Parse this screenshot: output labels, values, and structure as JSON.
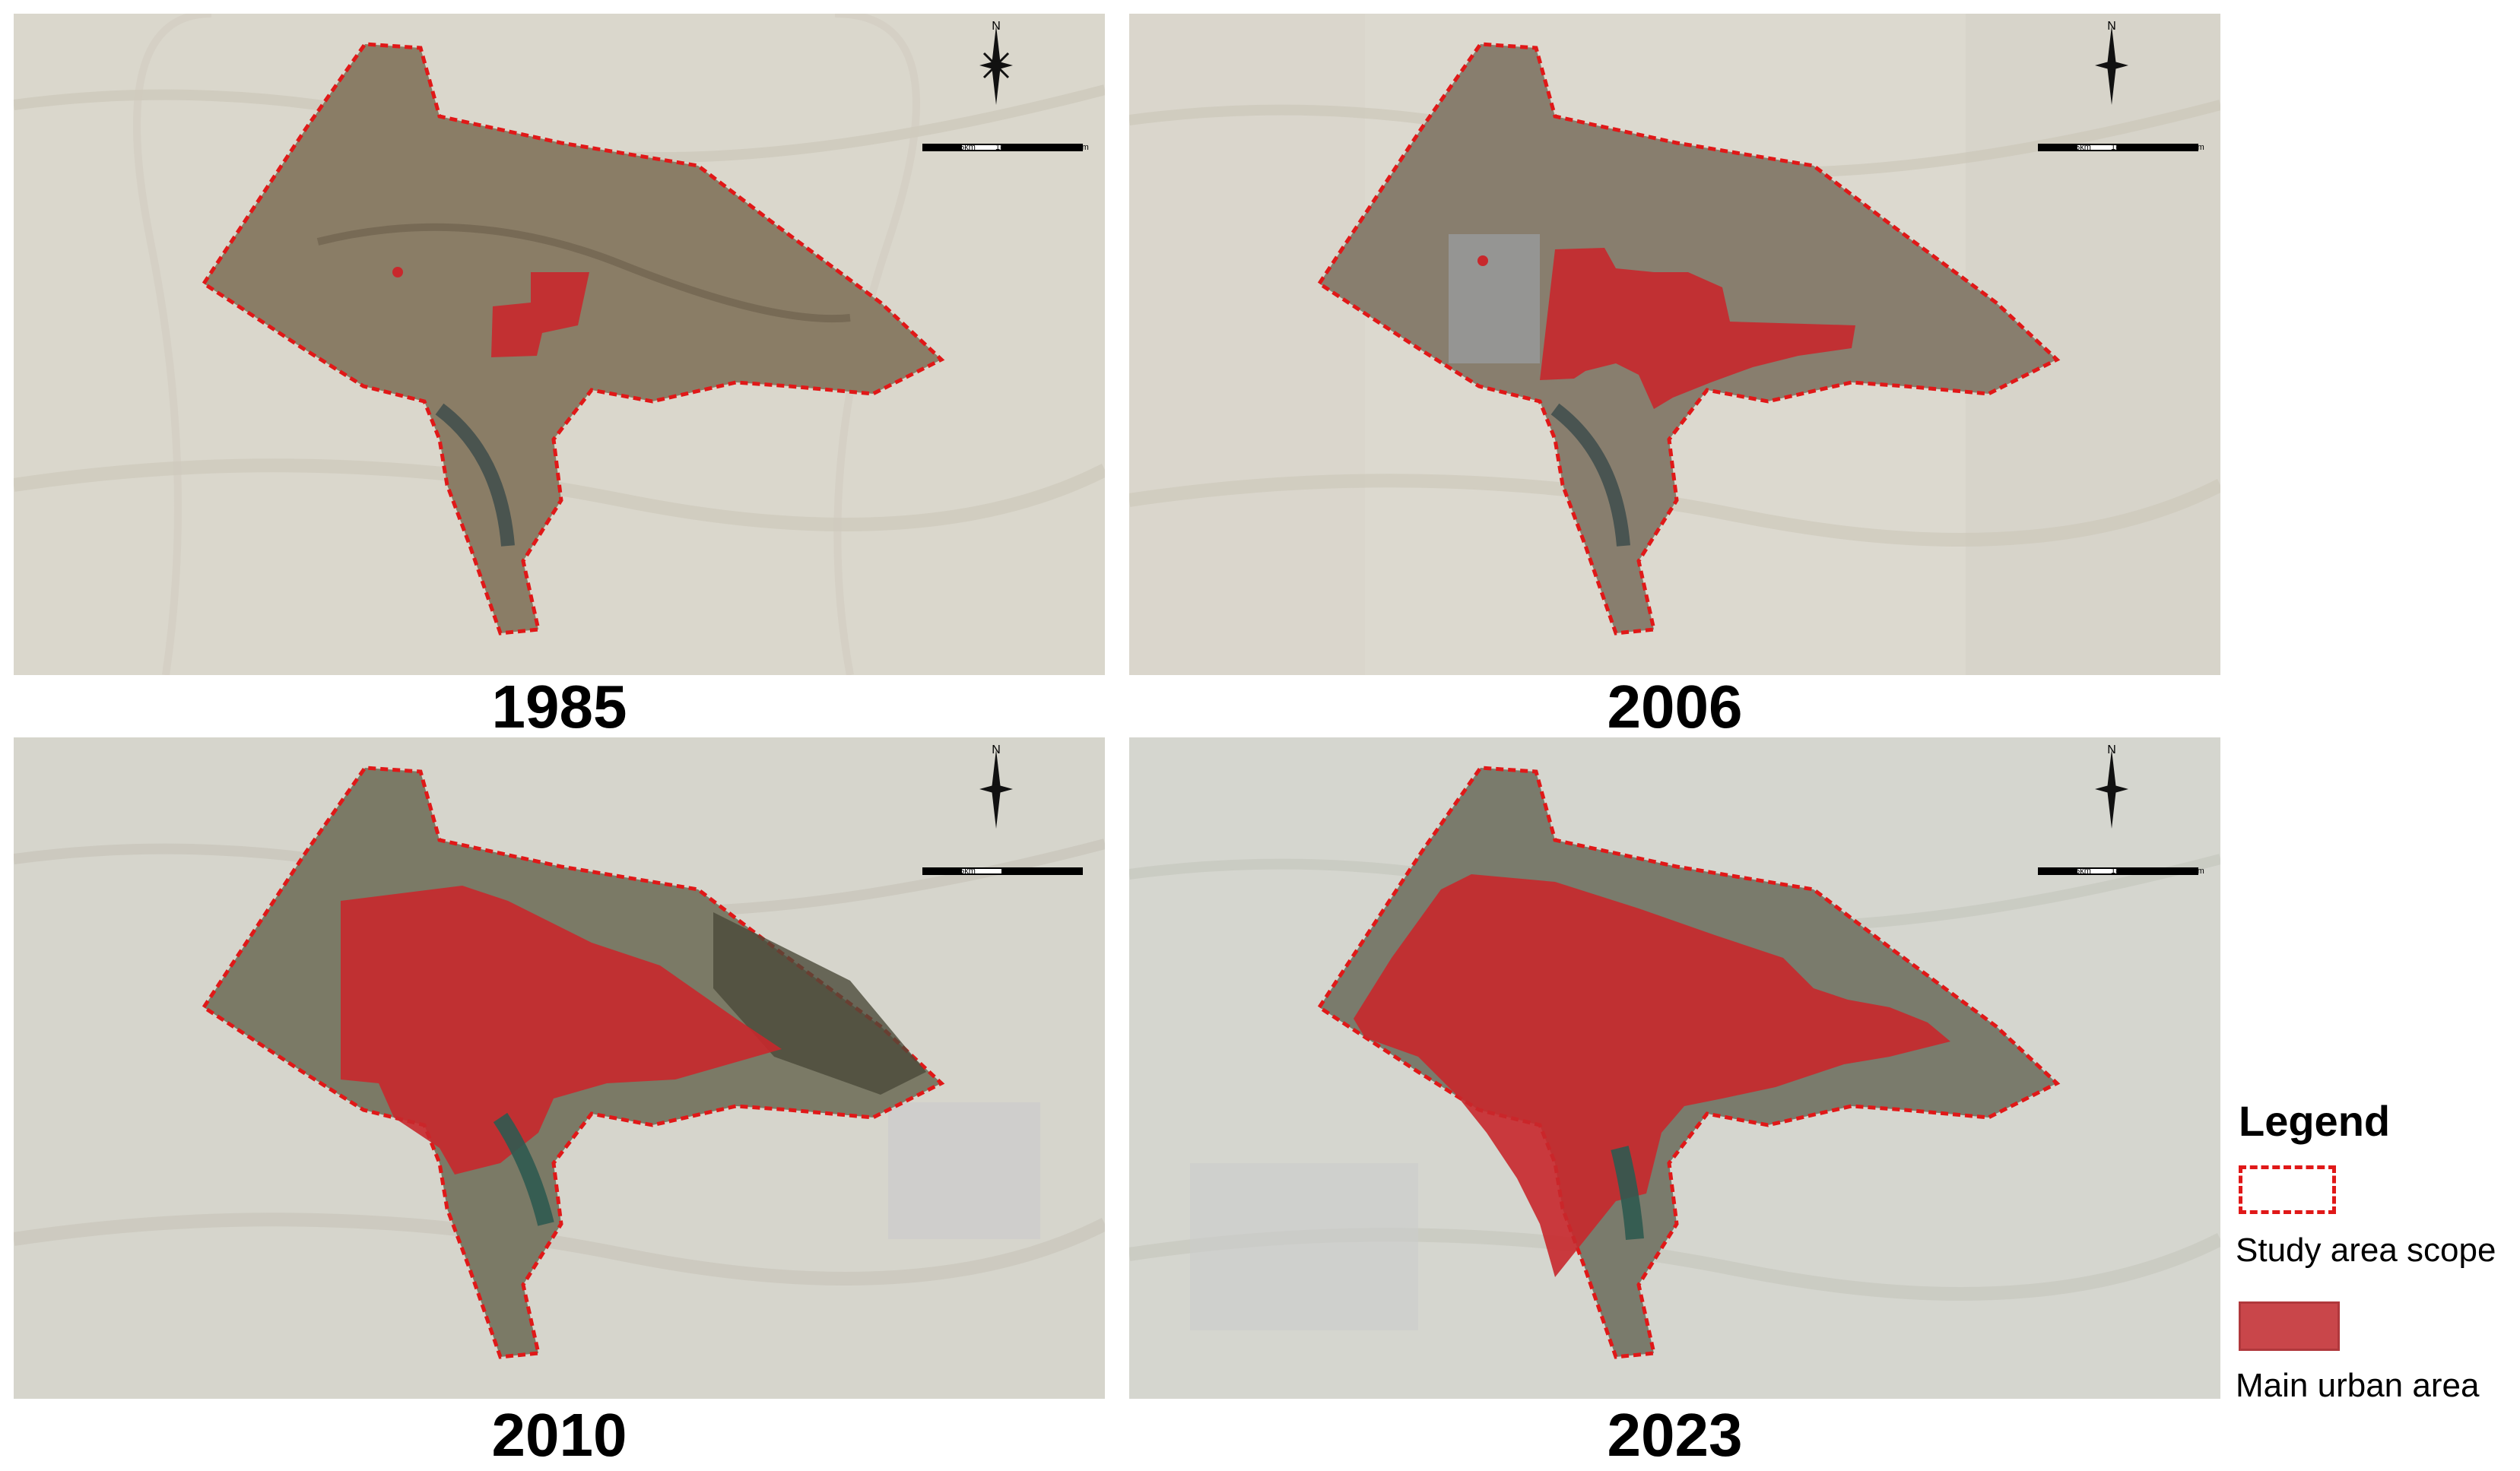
{
  "maps": [
    {
      "year": "1985",
      "urban_share": 0.05
    },
    {
      "year": "2006",
      "urban_share": 0.25
    },
    {
      "year": "2010",
      "urban_share": 0.55
    },
    {
      "year": "2023",
      "urban_share": 0.8
    }
  ],
  "north_label": "N",
  "scale_bar": {
    "labels": [
      "0",
      "0.5km",
      "1km",
      "2km"
    ]
  },
  "legend": {
    "title": "Legend",
    "study_area_label": "Study area scope",
    "urban_area_label": "Main urban area"
  },
  "colors": {
    "boundary": "#e01818",
    "urban_fill": "#c8282c",
    "background_terrain": "#d9d6ca",
    "study_area_terrain": "#8a7d66"
  }
}
